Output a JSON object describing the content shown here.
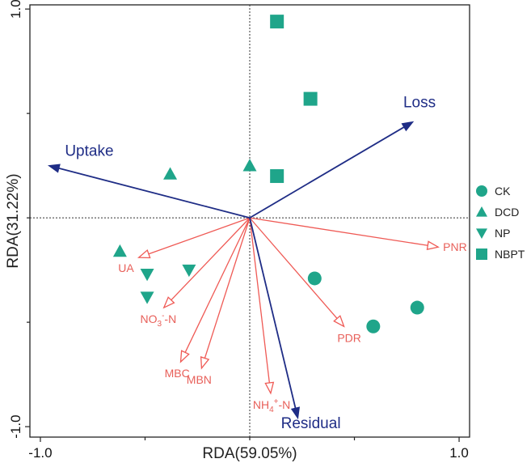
{
  "chart_data": {
    "type": "scatter",
    "subtype": "rda-biplot",
    "title": "",
    "xlabel": "RDA(59.05%)",
    "ylabel": "RDA(31.22%)",
    "xlim": [
      -1.05,
      1.05
    ],
    "ylim": [
      -1.05,
      1.02
    ],
    "xticks": [
      -1.0,
      1.0
    ],
    "xtick_labels": [
      "-1.0",
      "1.0"
    ],
    "yticks": [
      1.0,
      -1.0
    ],
    "ytick_labels": [
      "1.0",
      "-1.0"
    ],
    "grid": false,
    "reference_lines": "dotted lines at x=0 and y=0",
    "legend_position": "right",
    "colors": {
      "points": "#1fa58a",
      "environment_arrows": "#ef5a55",
      "response_arrows": "#1f2d86"
    },
    "series": [
      {
        "name": "CK",
        "marker": "circle",
        "points": [
          [
            0.31,
            -0.29
          ],
          [
            0.59,
            -0.52
          ],
          [
            0.8,
            -0.43
          ]
        ]
      },
      {
        "name": "DCD",
        "marker": "triangle-up",
        "points": [
          [
            -0.38,
            0.21
          ],
          [
            0.0,
            0.25
          ],
          [
            -0.62,
            -0.16
          ]
        ]
      },
      {
        "name": "NP",
        "marker": "triangle-down",
        "points": [
          [
            -0.49,
            -0.27
          ],
          [
            -0.29,
            -0.25
          ],
          [
            -0.49,
            -0.38
          ]
        ]
      },
      {
        "name": "NBPT",
        "marker": "square",
        "points": [
          [
            0.13,
            0.94
          ],
          [
            0.29,
            0.57
          ],
          [
            0.13,
            0.2
          ]
        ]
      }
    ],
    "environment_arrows": [
      {
        "name": "PNR",
        "x": 0.9,
        "y": -0.14
      },
      {
        "name": "UA",
        "x": -0.53,
        "y": -0.19
      },
      {
        "name": "NO3--N",
        "label_base": "NO",
        "label_sub": "3",
        "label_sup": "-",
        "label_tail": "-N",
        "x": -0.41,
        "y": -0.43
      },
      {
        "name": "MBC",
        "x": -0.33,
        "y": -0.69
      },
      {
        "name": "MBN",
        "x": -0.23,
        "y": -0.72
      },
      {
        "name": "NH4+-N",
        "label_base": "NH",
        "label_sub": "4",
        "label_sup": "+",
        "label_tail": "-N",
        "x": 0.1,
        "y": -0.84
      },
      {
        "name": "PDR",
        "x": 0.45,
        "y": -0.52
      }
    ],
    "response_arrows": [
      {
        "name": "Uptake",
        "x": -0.96,
        "y": 0.25
      },
      {
        "name": "Loss",
        "x": 0.78,
        "y": 0.46
      },
      {
        "name": "Residual",
        "x": 0.23,
        "y": -0.96
      }
    ]
  }
}
